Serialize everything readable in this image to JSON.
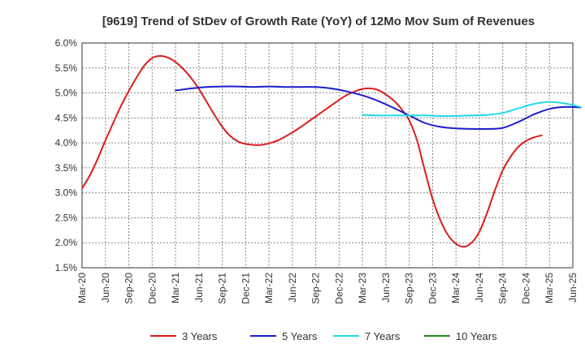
{
  "chart_data": {
    "type": "line",
    "title": "[9619]  Trend of StDev of Growth Rate (YoY) of 12Mo Mov Sum of Revenues",
    "xlabel": "",
    "ylabel": "",
    "ylim": [
      0.015,
      0.06
    ],
    "y_ticks": [
      0.015,
      0.02,
      0.025,
      0.03,
      0.035,
      0.04,
      0.045,
      0.05,
      0.055,
      0.06
    ],
    "y_tick_labels": [
      "1.5%",
      "2.0%",
      "2.5%",
      "3.0%",
      "3.5%",
      "4.0%",
      "4.5%",
      "5.0%",
      "5.5%",
      "6.0%"
    ],
    "x_range_months": [
      0,
      63
    ],
    "x_ticks": [
      0,
      3,
      6,
      9,
      12,
      15,
      18,
      21,
      24,
      27,
      30,
      33,
      36,
      39,
      42,
      45,
      48,
      51,
      54,
      57,
      60,
      63
    ],
    "x_tick_labels": [
      "Mar-20",
      "Jun-20",
      "Sep-20",
      "Dec-20",
      "Mar-21",
      "Jun-21",
      "Sep-21",
      "Dec-21",
      "Mar-22",
      "Jun-22",
      "Sep-22",
      "Dec-22",
      "Mar-23",
      "Jun-23",
      "Sep-23",
      "Dec-23",
      "Mar-24",
      "Jun-24",
      "Sep-24",
      "Dec-24",
      "Mar-25",
      "Jun-25"
    ],
    "grid": true,
    "legend_position": "bottom",
    "series": [
      {
        "name": "3 Years",
        "color": "#dd1c1c",
        "points": [
          [
            0,
            0.0309
          ],
          [
            1,
            0.0335
          ],
          [
            2,
            0.0368
          ],
          [
            3,
            0.0405
          ],
          [
            4,
            0.044
          ],
          [
            5,
            0.0474
          ],
          [
            6,
            0.0504
          ],
          [
            7,
            0.0531
          ],
          [
            8,
            0.0555
          ],
          [
            9,
            0.057
          ],
          [
            10,
            0.0574
          ],
          [
            11,
            0.0571
          ],
          [
            12,
            0.0562
          ],
          [
            13,
            0.0548
          ],
          [
            14,
            0.053
          ],
          [
            15,
            0.0508
          ],
          [
            16,
            0.0482
          ],
          [
            17,
            0.0456
          ],
          [
            18,
            0.0432
          ],
          [
            19,
            0.0414
          ],
          [
            20,
            0.0403
          ],
          [
            21,
            0.0398
          ],
          [
            22,
            0.0396
          ],
          [
            23,
            0.0396
          ],
          [
            24,
            0.0399
          ],
          [
            25,
            0.0404
          ],
          [
            26,
            0.0412
          ],
          [
            27,
            0.0421
          ],
          [
            28,
            0.0431
          ],
          [
            29,
            0.0442
          ],
          [
            30,
            0.0453
          ],
          [
            31,
            0.0464
          ],
          [
            32,
            0.0475
          ],
          [
            33,
            0.0486
          ],
          [
            34,
            0.0496
          ],
          [
            35,
            0.0503
          ],
          [
            36,
            0.0508
          ],
          [
            37,
            0.0509
          ],
          [
            38,
            0.0506
          ],
          [
            39,
            0.0497
          ],
          [
            40,
            0.0485
          ],
          [
            41,
            0.0468
          ],
          [
            42,
            0.0445
          ],
          [
            43,
            0.0405
          ],
          [
            44,
            0.0345
          ],
          [
            45,
            0.0288
          ],
          [
            46,
            0.0245
          ],
          [
            47,
            0.0215
          ],
          [
            48,
            0.0198
          ],
          [
            49,
            0.0192
          ],
          [
            50,
            0.02
          ],
          [
            51,
            0.0222
          ],
          [
            52,
            0.026
          ],
          [
            53,
            0.0305
          ],
          [
            54,
            0.0345
          ],
          [
            55,
            0.0372
          ],
          [
            56,
            0.0392
          ],
          [
            57,
            0.0404
          ],
          [
            58,
            0.0411
          ],
          [
            59,
            0.0415
          ]
        ]
      },
      {
        "name": "5 Years",
        "color": "#1c1ccc",
        "points": [
          [
            12,
            0.0505
          ],
          [
            14,
            0.0509
          ],
          [
            16,
            0.0512
          ],
          [
            18,
            0.0513
          ],
          [
            20,
            0.0513
          ],
          [
            22,
            0.0512
          ],
          [
            24,
            0.0513
          ],
          [
            26,
            0.0512
          ],
          [
            28,
            0.0512
          ],
          [
            30,
            0.0512
          ],
          [
            32,
            0.0509
          ],
          [
            34,
            0.0503
          ],
          [
            36,
            0.0495
          ],
          [
            38,
            0.0484
          ],
          [
            40,
            0.047
          ],
          [
            42,
            0.0455
          ],
          [
            44,
            0.044
          ],
          [
            46,
            0.0432
          ],
          [
            48,
            0.0429
          ],
          [
            50,
            0.0428
          ],
          [
            52,
            0.0428
          ],
          [
            54,
            0.043
          ],
          [
            56,
            0.0442
          ],
          [
            58,
            0.0457
          ],
          [
            60,
            0.0468
          ],
          [
            62,
            0.0472
          ],
          [
            64,
            0.0471
          ]
        ]
      },
      {
        "name": "7 Years",
        "color": "#22d8e8",
        "points": [
          [
            36,
            0.0456
          ],
          [
            38,
            0.0455
          ],
          [
            40,
            0.0455
          ],
          [
            42,
            0.0455
          ],
          [
            44,
            0.0455
          ],
          [
            46,
            0.0454
          ],
          [
            48,
            0.0454
          ],
          [
            50,
            0.0455
          ],
          [
            52,
            0.0456
          ],
          [
            54,
            0.046
          ],
          [
            56,
            0.0469
          ],
          [
            58,
            0.0478
          ],
          [
            60,
            0.0482
          ],
          [
            62,
            0.0479
          ],
          [
            64,
            0.0472
          ]
        ]
      },
      {
        "name": "10 Years",
        "color": "#1f8a1f",
        "points": []
      }
    ]
  }
}
